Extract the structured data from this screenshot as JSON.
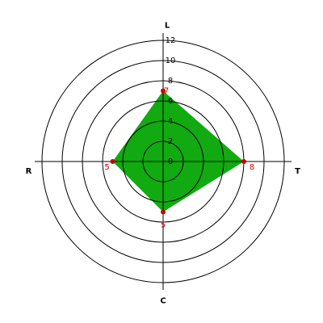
{
  "chart_data": {
    "type": "radar",
    "categories": [
      "L",
      "T",
      "C",
      "R"
    ],
    "values": [
      7,
      8,
      5,
      5
    ],
    "color": "#11aa11",
    "point_color": "#cc0000",
    "label_color": "#cc0000",
    "rlim": [
      0,
      12
    ],
    "rticks": [
      0,
      2,
      4,
      6,
      8,
      10,
      12
    ],
    "grid": true
  }
}
